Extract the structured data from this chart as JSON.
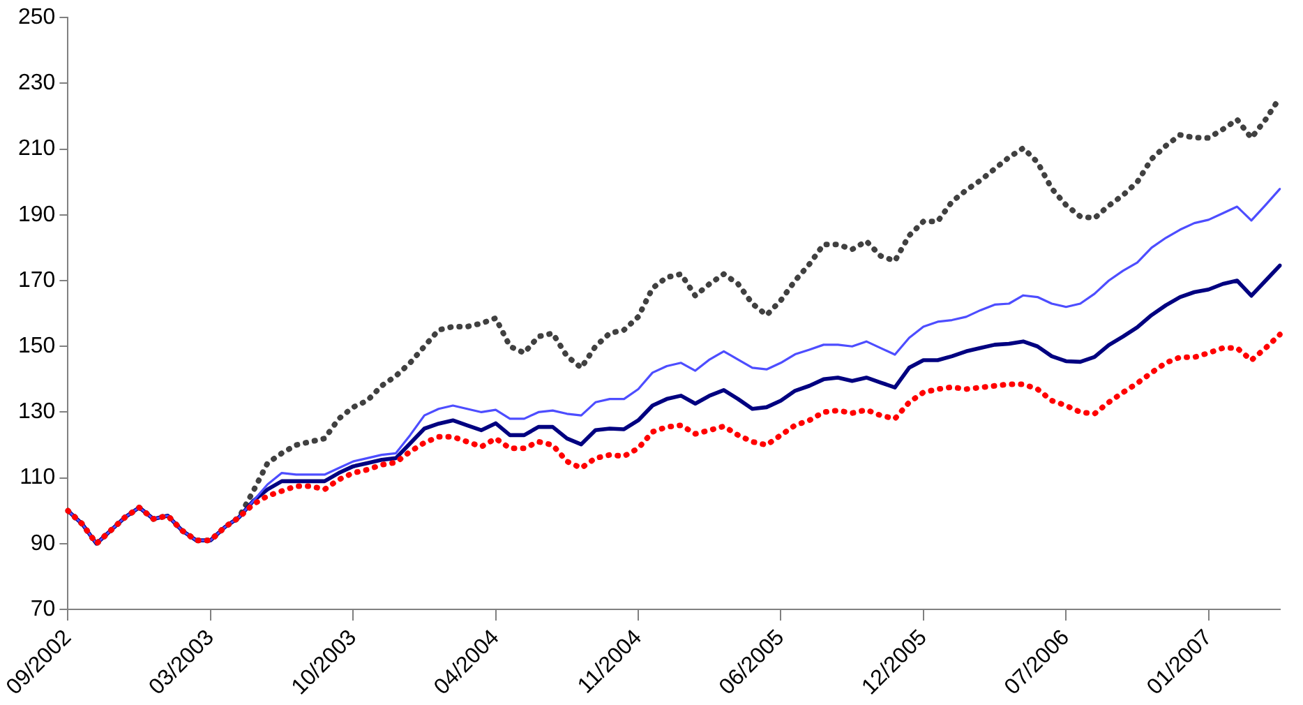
{
  "chart_data": {
    "type": "line",
    "categories": [
      "09/2002",
      null,
      null,
      null,
      null,
      null,
      null,
      null,
      null,
      null,
      "03/2003",
      null,
      null,
      null,
      null,
      null,
      null,
      null,
      null,
      null,
      "10/2003",
      null,
      null,
      null,
      null,
      null,
      null,
      null,
      null,
      null,
      "04/2004",
      null,
      null,
      null,
      null,
      null,
      null,
      null,
      null,
      null,
      "11/2004",
      null,
      null,
      null,
      null,
      null,
      null,
      null,
      null,
      null,
      "06/2005",
      null,
      null,
      null,
      null,
      null,
      null,
      null,
      null,
      null,
      "12/2005",
      null,
      null,
      null,
      null,
      null,
      null,
      null,
      null,
      null,
      "07/2006",
      null,
      null,
      null,
      null,
      null,
      null,
      null,
      null,
      null,
      "01/2007",
      null,
      null,
      null,
      null,
      null
    ],
    "ylim": [
      70,
      250
    ],
    "yticks": [
      70,
      90,
      110,
      130,
      150,
      170,
      190,
      210,
      230,
      250
    ],
    "grid": false,
    "legend": false,
    "marker": "none",
    "series": [
      {
        "color": "#404040",
        "line_style": "dotted",
        "values": [
          100,
          96,
          90,
          94,
          98,
          101,
          97.5,
          98.5,
          94,
          91,
          91,
          95,
          98,
          106,
          114.5,
          117.5,
          120,
          121,
          122,
          128,
          131.5,
          133.5,
          138,
          141,
          145,
          150,
          155,
          156,
          156,
          157,
          158.6,
          150,
          148,
          153,
          154,
          147,
          143.5,
          150,
          154,
          155,
          159,
          167.7,
          171,
          172,
          165.4,
          169,
          172,
          169,
          163,
          159.5,
          164,
          170,
          175,
          181,
          181,
          179.5,
          182,
          177.5,
          176,
          183.7,
          188,
          188,
          194,
          197.5,
          200.5,
          204,
          207.5,
          210.3,
          206,
          198,
          193,
          189.5,
          189,
          192.8,
          196,
          200,
          207,
          211,
          214.3,
          213.5,
          213.4,
          216,
          219,
          213.4,
          219,
          225.7
        ]
      },
      {
        "color": "#000080",
        "line_style": "solid",
        "values": [
          100,
          96,
          90,
          94,
          98,
          101,
          97.5,
          98.5,
          94,
          91,
          91,
          95,
          98,
          103,
          106.5,
          109,
          109,
          109,
          109,
          111.5,
          113.5,
          114.5,
          115.5,
          116,
          120.5,
          125,
          126.5,
          127.5,
          126,
          124.5,
          126.6,
          123,
          123,
          125.5,
          125.5,
          122,
          120.2,
          124.5,
          125,
          124.8,
          127.5,
          132,
          134,
          135,
          132.6,
          135,
          136.7,
          134,
          131,
          131.5,
          133.5,
          136.5,
          138,
          140,
          140.5,
          139.5,
          140.5,
          139,
          137.5,
          143.5,
          145.8,
          145.8,
          147,
          148.5,
          149.5,
          150.5,
          150.8,
          151.5,
          150,
          147,
          145.5,
          145.3,
          146.8,
          150.4,
          153,
          155.8,
          159.5,
          162.5,
          165,
          166.5,
          167.3,
          169,
          170,
          165.4,
          170,
          174.6
        ]
      },
      {
        "color": "#4d4dff",
        "line_style": "solid",
        "values": [
          100,
          96,
          90,
          94,
          98,
          101,
          97.5,
          98.5,
          94,
          91,
          91,
          95,
          98,
          103,
          108,
          111.5,
          111,
          111,
          111,
          113,
          115,
          116,
          117,
          117.5,
          123,
          129,
          131,
          132,
          131,
          130,
          130.7,
          128,
          128,
          130,
          130.5,
          129.5,
          129,
          133,
          134,
          134,
          137,
          142,
          144,
          145,
          142.6,
          146,
          148.5,
          146,
          143.5,
          143,
          145,
          147.6,
          149,
          150.5,
          150.5,
          150,
          151.5,
          149.5,
          147.5,
          152.6,
          156,
          157.5,
          158,
          159,
          161,
          162.7,
          163,
          165.5,
          165,
          163,
          162,
          163,
          166,
          170,
          173,
          175.5,
          180,
          183,
          185.5,
          187.5,
          188.5,
          190.5,
          192.5,
          188.3,
          193,
          197.9
        ]
      },
      {
        "color": "#ff0000",
        "line_style": "dotted",
        "values": [
          100,
          96,
          90,
          94,
          98,
          101,
          97.5,
          98.5,
          94,
          91,
          91,
          95,
          98,
          102,
          104.5,
          106,
          107.5,
          107.5,
          106.5,
          109.5,
          111.5,
          112.5,
          114,
          114.7,
          118,
          120.7,
          122.5,
          122.5,
          121,
          119.5,
          122,
          119,
          119,
          121,
          120,
          115,
          113,
          116,
          117,
          116.6,
          119,
          124,
          125.5,
          126,
          123.4,
          124.5,
          125.7,
          123,
          121,
          120,
          123,
          126,
          127.5,
          130,
          130.5,
          129.7,
          130.7,
          129,
          128,
          133,
          136,
          137,
          137.6,
          137,
          137.5,
          138,
          138.5,
          138.5,
          137,
          133.5,
          132,
          130,
          129.5,
          133,
          136,
          138.8,
          142,
          145,
          146.7,
          146.7,
          148,
          149.5,
          149.5,
          145.8,
          149.5,
          153.6
        ]
      }
    ]
  }
}
